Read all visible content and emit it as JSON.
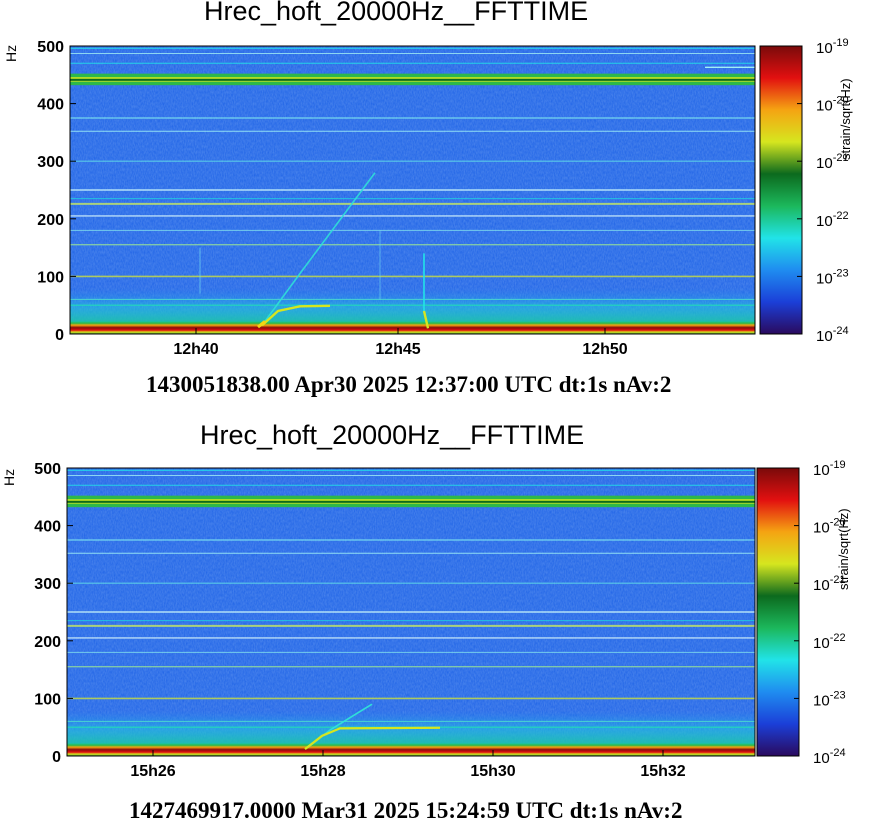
{
  "chart_data": [
    {
      "type": "heatmap",
      "title": "Hrec_hoft_20000Hz__FFTTIME",
      "ylabel": "Hz",
      "ylim": [
        0,
        500
      ],
      "yticks": [
        "0",
        "100",
        "200",
        "300",
        "400",
        "500"
      ],
      "xticks": [
        "12h40",
        "12h45",
        "12h50"
      ],
      "colorbar_label": "strain/sqrt(Hz)",
      "colorbar_ticks": [
        "10",
        "10",
        "10",
        "10",
        "10",
        "10"
      ],
      "colorbar_exponents": [
        "-19",
        "-20",
        "-21",
        "-22",
        "-23",
        "-24"
      ],
      "footer": "1430051838.00 Apr30 2025 12:37:00 UTC dt:1s nAv:2",
      "colormap": [
        "#2a0a5e",
        "#1b3fd8",
        "#1f8cf0",
        "#21e3e8",
        "#1cb85c",
        "#0c6a1e",
        "#d6e61f",
        "#f5a412",
        "#e21010",
        "#7a0a0a"
      ]
    },
    {
      "type": "heatmap",
      "title": "Hrec_hoft_20000Hz__FFTTIME",
      "ylabel": "Hz",
      "ylim": [
        0,
        500
      ],
      "yticks": [
        "0",
        "100",
        "200",
        "300",
        "400",
        "500"
      ],
      "xticks": [
        "15h26",
        "15h28",
        "15h30",
        "15h32"
      ],
      "colorbar_label": "strain/sqrt(Hz)",
      "colorbar_ticks": [
        "10",
        "10",
        "10",
        "10",
        "10",
        "10"
      ],
      "colorbar_exponents": [
        "-19",
        "-20",
        "-21",
        "-22",
        "-23",
        "-24"
      ],
      "footer": "1427469917.0000 Mar31 2025 15:24:59 UTC dt:1s nAv:2",
      "colormap": [
        "#2a0a5e",
        "#1b3fd8",
        "#1f8cf0",
        "#21e3e8",
        "#1cb85c",
        "#0c6a1e",
        "#d6e61f",
        "#f5a412",
        "#e21010",
        "#7a0a0a"
      ]
    }
  ]
}
